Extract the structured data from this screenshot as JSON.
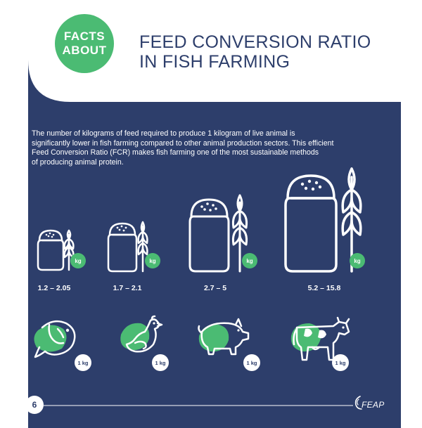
{
  "badge": {
    "line1": "FACTS",
    "line2": "ABOUT"
  },
  "title": {
    "line1": "FEED CONVERSION RATIO",
    "line2": "IN FISH FARMING"
  },
  "intro": {
    "line1": "The number of kilograms of feed required to produce 1 kilogram of live animal is",
    "line2": "significantly lower in fish farming compared to other animal production sectors. This efficient",
    "line3": "Feed Conversion Ratio (FCR) makes fish farming one of the most sustainable methods",
    "line4": "of producing animal protein."
  },
  "feed_unit": "kg",
  "animal_unit": "1 kg",
  "columns": [
    {
      "ratio": "1.2 – 2.05",
      "animal_icon": "fish-icon"
    },
    {
      "ratio": "1.7 – 2.1",
      "animal_icon": "chicken-icon"
    },
    {
      "ratio": "2.7 – 5",
      "animal_icon": "pig-icon"
    },
    {
      "ratio": "5.2 – 15.8",
      "animal_icon": "cow-icon"
    }
  ],
  "footer": {
    "page_number": "6",
    "logo_text": "FEAP"
  },
  "colors": {
    "navy": "#2d3e6b",
    "green": "#4bbb73",
    "white": "#ffffff"
  }
}
